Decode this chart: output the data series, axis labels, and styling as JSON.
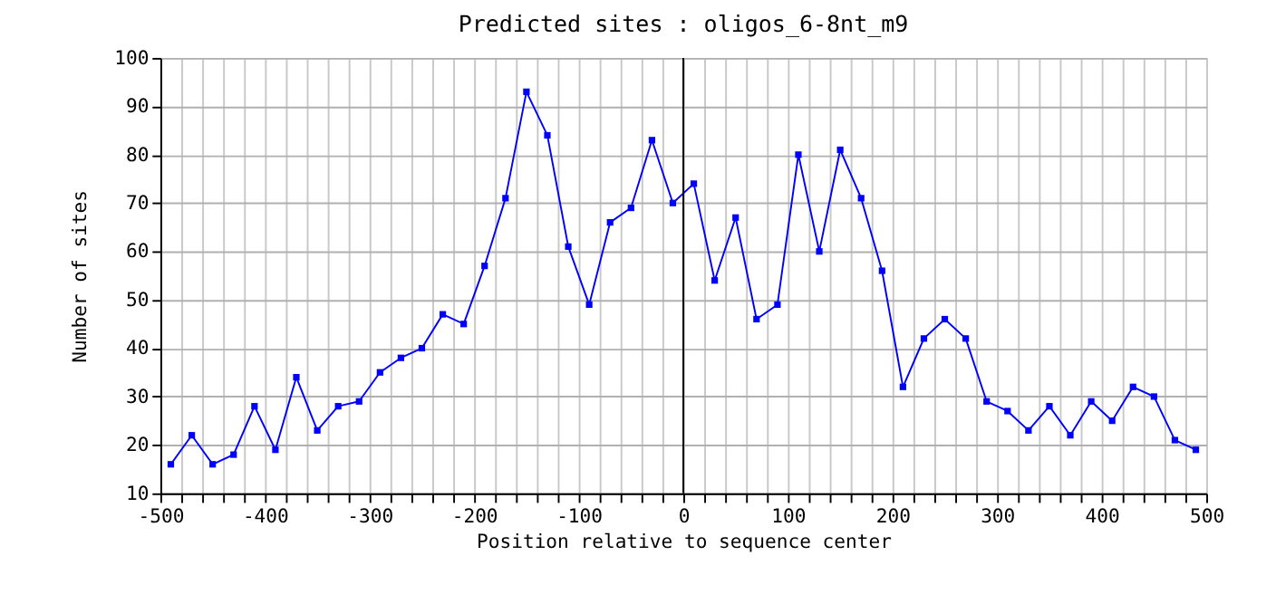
{
  "chart_data": {
    "type": "line",
    "title": "Predicted sites : oligos_6-8nt_m9",
    "xlabel": "Position relative to sequence center",
    "ylabel": "Number of sites",
    "x": [
      -490,
      -470,
      -450,
      -430,
      -410,
      -390,
      -370,
      -350,
      -330,
      -310,
      -290,
      -270,
      -250,
      -230,
      -210,
      -190,
      -170,
      -150,
      -130,
      -110,
      -90,
      -70,
      -50,
      -30,
      -10,
      10,
      30,
      50,
      70,
      90,
      110,
      130,
      150,
      170,
      190,
      210,
      230,
      250,
      270,
      290,
      310,
      330,
      350,
      370,
      390,
      410,
      430,
      450,
      470,
      490
    ],
    "series": [
      {
        "color": "#0000ff",
        "values": [
          16,
          22,
          16,
          18,
          28,
          19,
          34,
          23,
          28,
          29,
          35,
          38,
          40,
          47,
          45,
          57,
          71,
          93,
          84,
          61,
          49,
          66,
          69,
          83,
          70,
          74,
          54,
          67,
          46,
          49,
          80,
          60,
          81,
          71,
          56,
          32,
          42,
          46,
          42,
          29,
          27,
          23,
          28,
          22,
          29,
          25,
          32,
          30,
          21,
          19
        ]
      }
    ],
    "xlim": [
      -500,
      500
    ],
    "xticks": [
      -500,
      {
        "value": -480,
        "label": null
      },
      {
        "value": -460,
        "label": null
      },
      {
        "value": -440,
        "label": null
      },
      {
        "value": -420,
        "label": null
      },
      -400,
      {
        "value": -380,
        "label": null
      },
      {
        "value": -360,
        "label": null
      },
      {
        "value": -340,
        "label": null
      },
      {
        "value": -320,
        "label": null
      },
      -300,
      {
        "value": -280,
        "label": null
      },
      {
        "value": -260,
        "label": null
      },
      {
        "value": -240,
        "label": null
      },
      {
        "value": -220,
        "label": null
      },
      -200,
      {
        "value": -180,
        "label": null
      },
      {
        "value": -160,
        "label": null
      },
      {
        "value": -140,
        "label": null
      },
      {
        "value": -120,
        "label": null
      },
      -100,
      {
        "value": -80,
        "label": null
      },
      {
        "value": -60,
        "label": null
      },
      {
        "value": -40,
        "label": null
      },
      {
        "value": -20,
        "label": null
      },
      0,
      {
        "value": 20,
        "label": null
      },
      {
        "value": 40,
        "label": null
      },
      {
        "value": 60,
        "label": null
      },
      {
        "value": 80,
        "label": null
      },
      100,
      {
        "value": 120,
        "label": null
      },
      {
        "value": 140,
        "label": null
      },
      {
        "value": 160,
        "label": null
      },
      {
        "value": 180,
        "label": null
      },
      200,
      {
        "value": 220,
        "label": null
      },
      {
        "value": 240,
        "label": null
      },
      {
        "value": 260,
        "label": null
      },
      {
        "value": 280,
        "label": null
      },
      300,
      {
        "value": 320,
        "label": null
      },
      {
        "value": 340,
        "label": null
      },
      {
        "value": 360,
        "label": null
      },
      {
        "value": 380,
        "label": null
      },
      400,
      {
        "value": 420,
        "label": null
      },
      {
        "value": 440,
        "label": null
      },
      {
        "value": 460,
        "label": null
      },
      {
        "value": 480,
        "label": null
      },
      500
    ],
    "ylim": [
      10,
      100
    ],
    "yticks": [
      10,
      20,
      30,
      40,
      50,
      60,
      70,
      80,
      90,
      100
    ],
    "ref_lines": [
      {
        "axis": "x",
        "value": 0,
        "color": "#000000"
      }
    ],
    "grid": true,
    "marker": "square",
    "line_style": "solid"
  }
}
